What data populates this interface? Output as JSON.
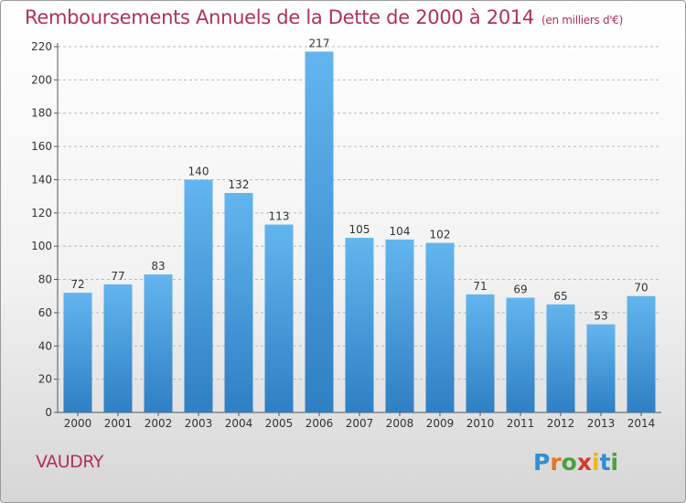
{
  "title": "Remboursements Annuels de la Dette de 2000 à 2014",
  "unit_label": "(en milliers d'€)",
  "commune": "VAUDRY",
  "logo_text": "Proxiti",
  "colors": {
    "title": "#b03060",
    "bar_top": "#63b5ee",
    "bar_bottom": "#2f7fc4",
    "grid": "#b8b8b8",
    "logo": [
      "#2e8fd3",
      "#e8731e",
      "#4aa33c",
      "#d43a2f",
      "#f0b321",
      "#2e8fd3",
      "#4aa33c"
    ]
  },
  "chart_data": {
    "type": "bar",
    "title": "Remboursements Annuels de la Dette de 2000 à 2014",
    "xlabel": "",
    "ylabel": "",
    "ylim": [
      0,
      220
    ],
    "yticks": [
      0,
      20,
      40,
      60,
      80,
      100,
      120,
      140,
      160,
      180,
      200,
      220
    ],
    "grid": true,
    "categories": [
      "2000",
      "2001",
      "2002",
      "2003",
      "2004",
      "2005",
      "2006",
      "2007",
      "2008",
      "2009",
      "2010",
      "2011",
      "2012",
      "2013",
      "2014"
    ],
    "values": [
      72,
      77,
      83,
      140,
      132,
      113,
      217,
      105,
      104,
      102,
      71,
      69,
      65,
      53,
      70
    ]
  }
}
